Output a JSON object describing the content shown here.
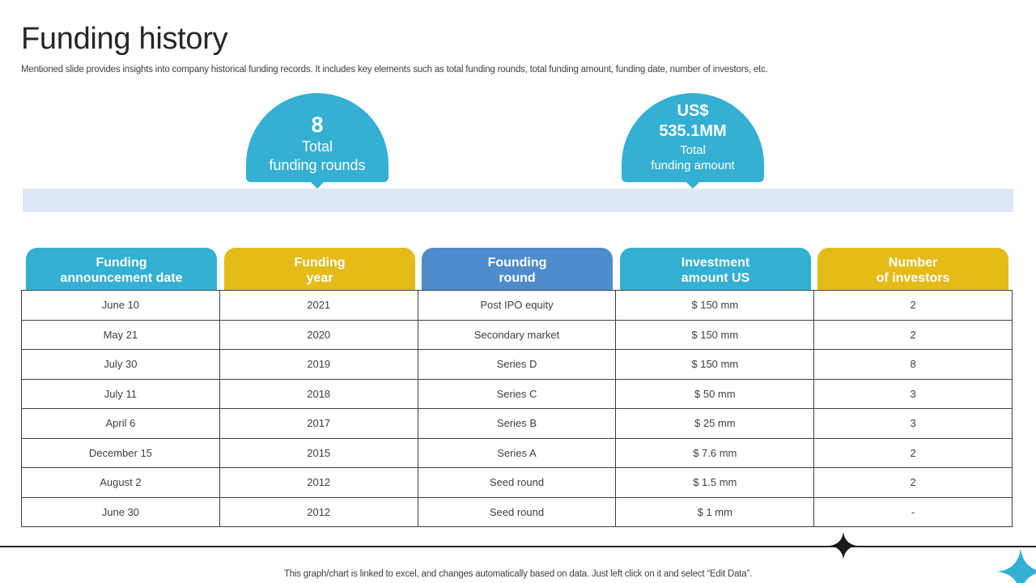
{
  "slide": {
    "title": "Funding history",
    "subtitle": "Mentioned slide provides insights into company historical funding records. It includes key elements such as total funding rounds, total funding amount, funding date, number of investors, etc.",
    "footnote": "This graph/chart is linked to excel,  and changes automatically based on data. Just left click on it and select “Edit Data”."
  },
  "highlights": [
    {
      "value": "8",
      "label_line1": "Total",
      "label_line2": "funding rounds"
    },
    {
      "value_line1": "US$",
      "value_line2": "535.1MM",
      "label_line1": "Total",
      "label_line2": "funding amount"
    }
  ],
  "table": {
    "headers": [
      {
        "line1": "Funding",
        "line2": "announcement date",
        "color": "#33b0d3"
      },
      {
        "line1": "Funding",
        "line2": "year",
        "color": "#e4bb17"
      },
      {
        "line1": "Founding",
        "line2": "round",
        "color": "#4e8ccb"
      },
      {
        "line1": "Investment",
        "line2": "amount US",
        "color": "#33b0d3"
      },
      {
        "line1": "Number",
        "line2": "of investors",
        "color": "#e4bb17"
      }
    ],
    "rows": [
      [
        "June 10",
        "2021",
        "Post IPO equity",
        "$ 150  mm",
        "2"
      ],
      [
        "May 21",
        "2020",
        "Secondary market",
        "$ 150  mm",
        "2"
      ],
      [
        "July 30",
        "2019",
        "Series D",
        "$ 150  mm",
        "8"
      ],
      [
        "July 11",
        "2018",
        "Series C",
        "$ 50  mm",
        "3"
      ],
      [
        "April 6",
        "2017",
        "Series B",
        "$ 25  mm",
        "3"
      ],
      [
        "December 15",
        "2015",
        "Series A",
        "$ 7.6  mm",
        "2"
      ],
      [
        "August 2",
        "2012",
        "Seed round",
        "$ 1.5  mm",
        "2"
      ],
      [
        "June 30",
        "2012",
        "Seed round",
        "$ 1  mm",
        "-"
      ]
    ]
  },
  "decor": {
    "dark_star_icon": "four-point-star-icon",
    "blue_star_icon": "four-point-star-icon",
    "dark_star_color": "#1a1a1a",
    "blue_star_color": "#33b0d3"
  }
}
